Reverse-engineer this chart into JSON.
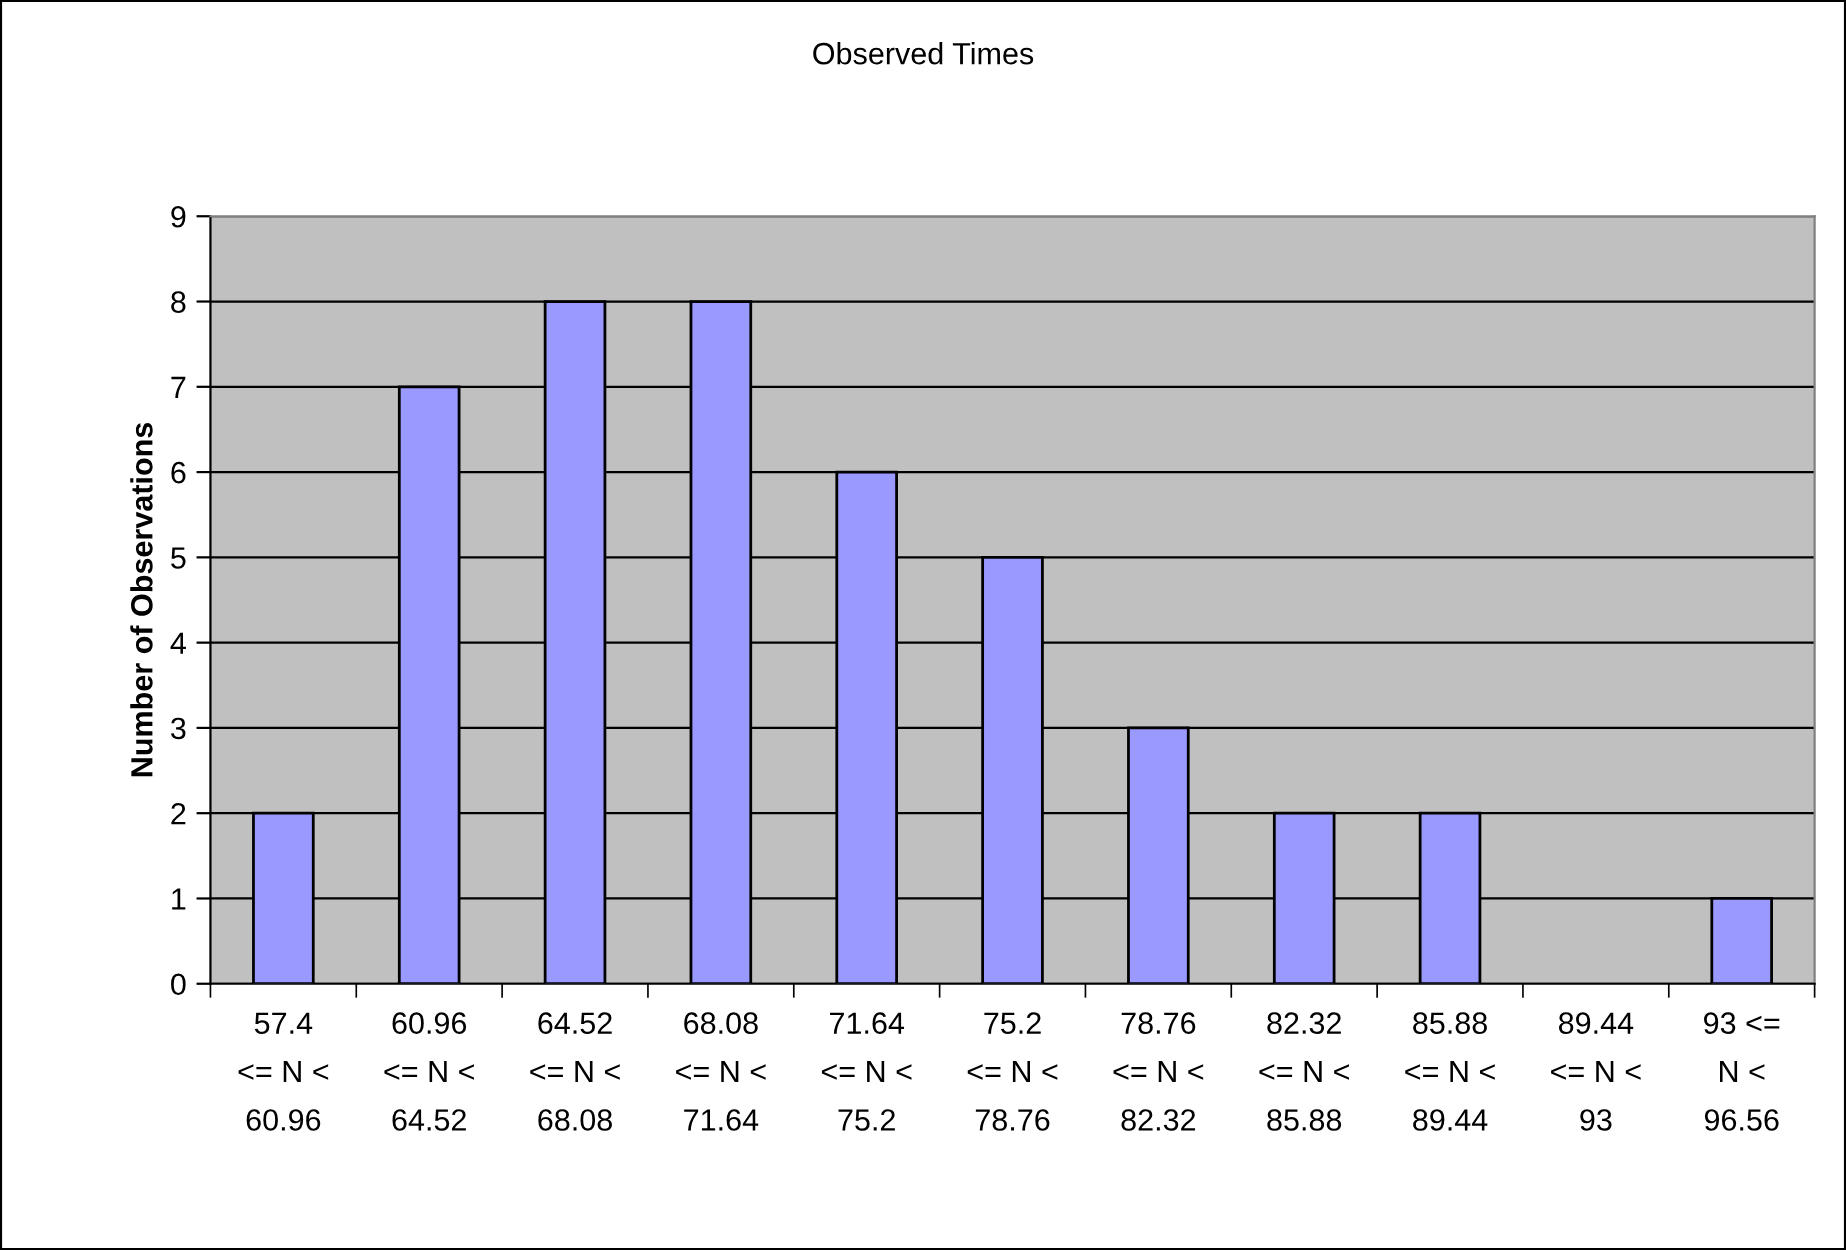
{
  "chart_data": {
    "type": "bar",
    "title": "Observed Times",
    "ylabel": "Number of Observations",
    "categories": [
      "57.4\n<= N <\n60.96",
      "60.96\n<= N <\n64.52",
      "64.52\n<= N <\n68.08",
      "68.08\n<= N <\n71.64",
      "71.64\n<= N <\n75.2",
      "75.2\n<= N <\n78.76",
      "78.76\n<= N <\n82.32",
      "82.32\n<= N <\n85.88",
      "85.88\n<= N <\n89.44",
      "89.44\n<= N <\n93",
      "93 <=\nN <\n96.56"
    ],
    "values": [
      2,
      7,
      8,
      8,
      6,
      5,
      3,
      2,
      2,
      0,
      1
    ],
    "color": "#9999ff",
    "ylim": [
      0,
      9
    ],
    "yticks": [
      0,
      1,
      2,
      3,
      4,
      5,
      6,
      7,
      8,
      9
    ],
    "grid": "y"
  }
}
